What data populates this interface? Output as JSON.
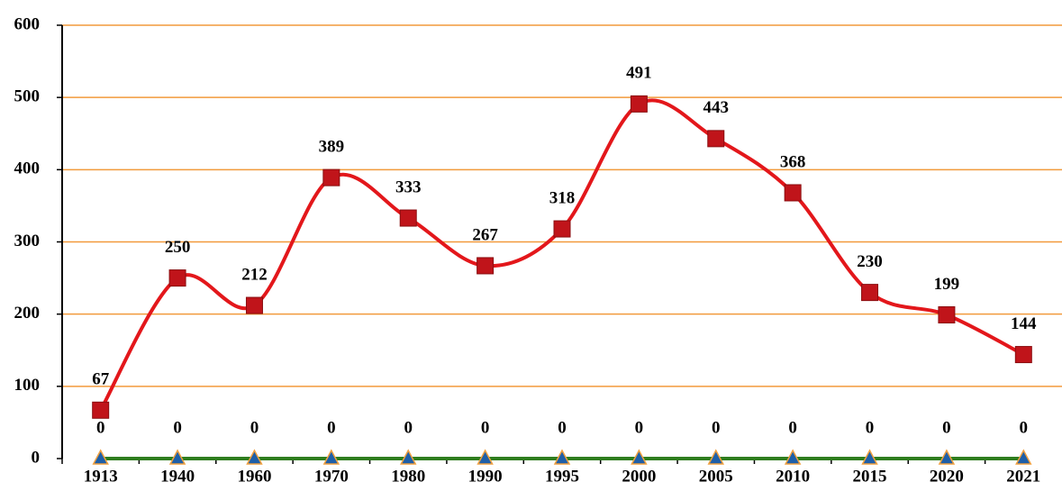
{
  "chart_data": {
    "type": "line",
    "categories": [
      "1913",
      "1940",
      "1960",
      "1970",
      "1980",
      "1990",
      "1995",
      "2000",
      "2005",
      "2010",
      "2015",
      "2020",
      "2021"
    ],
    "series": [
      {
        "color": "#e3171b",
        "marker": "square",
        "smooth": true,
        "values": [
          67,
          250,
          212,
          389,
          333,
          267,
          318,
          491,
          443,
          368,
          230,
          199,
          144
        ]
      },
      {
        "color": "#2e7d1e",
        "marker": "triangle",
        "smooth": false,
        "values": [
          0,
          0,
          0,
          0,
          0,
          0,
          0,
          0,
          0,
          0,
          0,
          0,
          0
        ]
      }
    ],
    "ylim": [
      0,
      600
    ],
    "yticks": [
      0,
      100,
      200,
      300,
      400,
      500,
      600
    ],
    "grid": true,
    "grid_color": "#f29a3c"
  }
}
